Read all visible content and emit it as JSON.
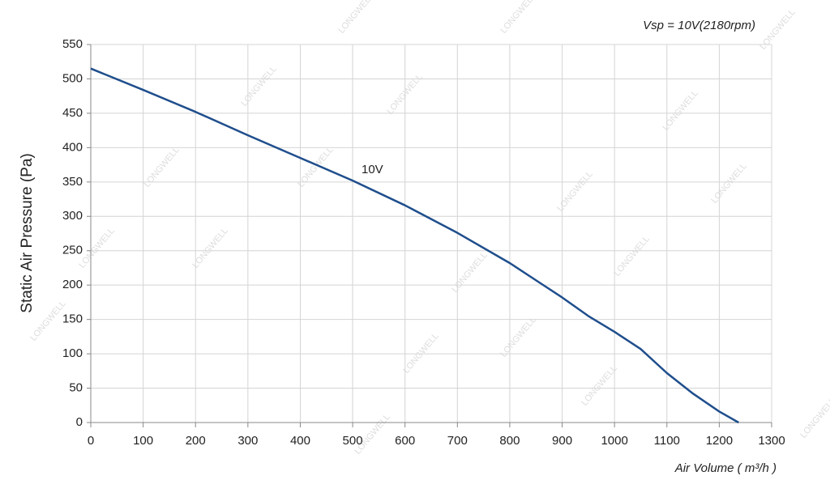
{
  "chart_data": {
    "type": "line",
    "subtitle": "Vsp = 10V(2180rpm)",
    "x_label": "Air Volume ( m³/h )",
    "y_label": "Static Air Pressure  (Pa)",
    "watermark": "LONGWELL",
    "x": [
      0,
      100,
      200,
      300,
      400,
      500,
      600,
      700,
      800,
      860,
      900,
      950,
      1000,
      1050,
      1100,
      1150,
      1200,
      1237
    ],
    "series": [
      {
        "name": "10V",
        "color": "#1f4e8c",
        "values": [
          515,
          484,
          452,
          418,
          385,
          352,
          316,
          276,
          232,
          202,
          182,
          155,
          132,
          107,
          72,
          42,
          16,
          0
        ]
      }
    ],
    "xlim": [
      0,
      1300
    ],
    "xticks": [
      0,
      100,
      200,
      300,
      400,
      500,
      600,
      700,
      800,
      900,
      1000,
      1100,
      1200,
      1300
    ],
    "ylim": [
      0,
      550
    ],
    "yticks": [
      0,
      50,
      100,
      150,
      200,
      250,
      300,
      350,
      400,
      450,
      500,
      550
    ],
    "grid": true
  }
}
